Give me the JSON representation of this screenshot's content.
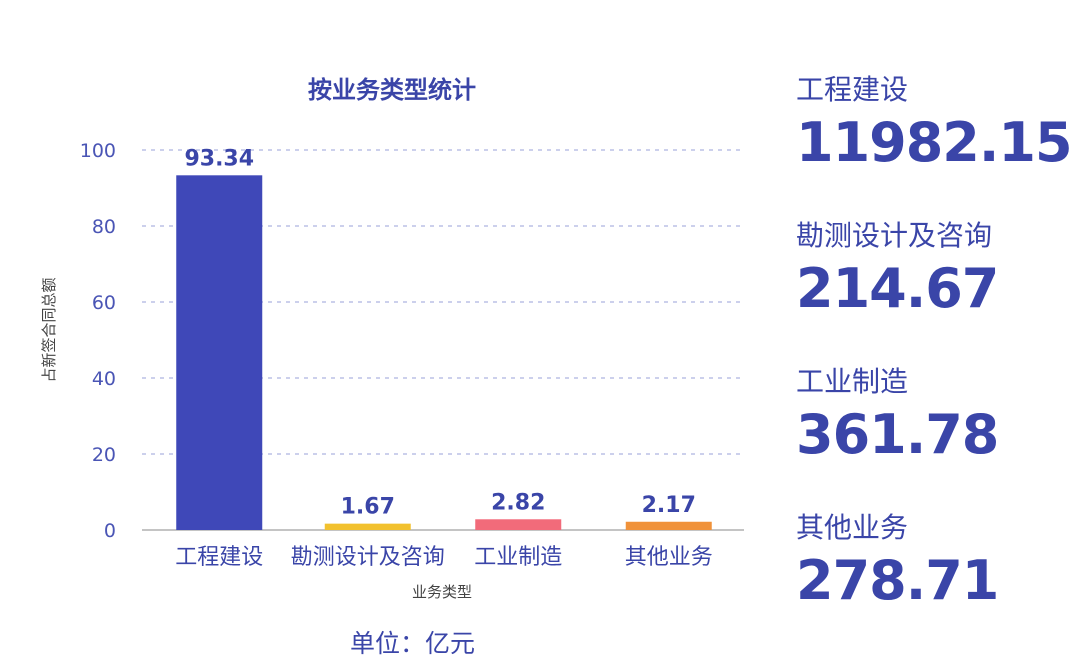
{
  "chart_data": {
    "type": "bar",
    "title": "按业务类型统计",
    "xlabel": "业务类型",
    "ylabel": "占新签合同总额",
    "categories": [
      "工程建设",
      "勘测设计及咨询",
      "工业制造",
      "其他业务"
    ],
    "values": [
      93.34,
      1.67,
      2.82,
      2.17
    ],
    "value_labels": [
      "93.34",
      "1.67",
      "2.82",
      "2.17"
    ],
    "colors": [
      "#3f48b8",
      "#f2c12e",
      "#f26b7a",
      "#f0923a"
    ],
    "ylim": [
      0,
      100
    ],
    "yticks": [
      0,
      20,
      40,
      60,
      80,
      100
    ],
    "grid": true
  },
  "unit_note": "单位：亿元",
  "stats": [
    {
      "label": "工程建设",
      "value": "11982.15"
    },
    {
      "label": "勘测设计及咨询",
      "value": "214.67"
    },
    {
      "label": "工业制造",
      "value": "361.78"
    },
    {
      "label": "其他业务",
      "value": "278.71"
    }
  ],
  "accent_color": "#3a45a8"
}
